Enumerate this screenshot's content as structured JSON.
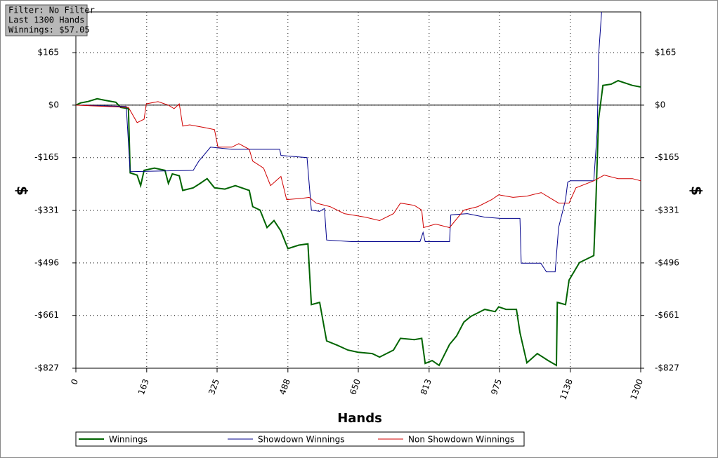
{
  "info": {
    "filter": "Filter: No Filter",
    "hands": "Last 1300 Hands",
    "winnings": "Winnings: $57.05"
  },
  "chart_data": {
    "type": "line",
    "xlabel": "Hands",
    "ylabel": "$",
    "y2label": "$",
    "grid": true,
    "xlim": [
      0,
      1300
    ],
    "ylim": [
      -827,
      293
    ],
    "xticks": [
      0,
      163,
      325,
      488,
      650,
      813,
      975,
      1138,
      1300
    ],
    "yticks": [
      {
        "value": 165,
        "label": "$165"
      },
      {
        "value": 0,
        "label": "$0"
      },
      {
        "value": -165,
        "label": "-$165"
      },
      {
        "value": -331,
        "label": "-$331"
      },
      {
        "value": -496,
        "label": "-$496"
      },
      {
        "value": -661,
        "label": "-$661"
      },
      {
        "value": -827,
        "label": "-$827"
      }
    ],
    "series": [
      {
        "name": "Winnings",
        "color": "#006400",
        "x": [
          0,
          11,
          27,
          49,
          68,
          92,
          103,
          121,
          125,
          141,
          149,
          157,
          181,
          205,
          213,
          222,
          238,
          246,
          270,
          286,
          302,
          319,
          343,
          367,
          399,
          407,
          424,
          440,
          456,
          472,
          488,
          513,
          534,
          542,
          561,
          577,
          602,
          626,
          650,
          682,
          699,
          731,
          747,
          779,
          796,
          804,
          820,
          836,
          860,
          876,
          893,
          909,
          925,
          941,
          965,
          973,
          990,
          1014,
          1022,
          1038,
          1062,
          1087,
          1106,
          1108,
          1127,
          1135,
          1159,
          1192,
          1197,
          1203,
          1213,
          1232,
          1248,
          1281,
          1300
        ],
        "values": [
          0,
          7,
          11,
          20,
          15,
          9,
          -7,
          -11,
          -213,
          -220,
          -253,
          -205,
          -198,
          -205,
          -246,
          -216,
          -222,
          -268,
          -260,
          -246,
          -231,
          -260,
          -264,
          -253,
          -268,
          -319,
          -330,
          -385,
          -363,
          -396,
          -451,
          -440,
          -436,
          -627,
          -620,
          -741,
          -755,
          -770,
          -777,
          -781,
          -792,
          -770,
          -733,
          -737,
          -733,
          -812,
          -803,
          -818,
          -752,
          -726,
          -682,
          -664,
          -653,
          -642,
          -649,
          -634,
          -642,
          -642,
          -715,
          -810,
          -781,
          -803,
          -818,
          -620,
          -627,
          -550,
          -495,
          -473,
          -297,
          -44,
          62,
          66,
          77,
          62,
          57
        ]
      },
      {
        "name": "Showdown Winnings",
        "color": "#00008b",
        "x": [
          0,
          116,
          125,
          270,
          283,
          310,
          359,
          469,
          472,
          532,
          542,
          561,
          572,
          577,
          634,
          792,
          799,
          804,
          860,
          863,
          901,
          941,
          977,
          1022,
          1025,
          1070,
          1083,
          1103,
          1111,
          1127,
          1132,
          1138,
          1192,
          1200,
          1203,
          1210
        ],
        "values": [
          0,
          -4,
          -209,
          -205,
          -176,
          -132,
          -139,
          -139,
          -158,
          -165,
          -330,
          -334,
          -325,
          -424,
          -429,
          -429,
          -400,
          -429,
          -429,
          -345,
          -341,
          -352,
          -356,
          -356,
          -497,
          -497,
          -524,
          -524,
          -385,
          -297,
          -242,
          -238,
          -238,
          -77,
          154,
          293
        ]
      },
      {
        "name": "Non Showdown Winnings",
        "color": "#d00000",
        "x": [
          0,
          121,
          141,
          157,
          162,
          189,
          213,
          226,
          238,
          246,
          262,
          294,
          319,
          327,
          359,
          375,
          399,
          407,
          432,
          448,
          472,
          485,
          521,
          537,
          553,
          585,
          618,
          666,
          699,
          731,
          747,
          779,
          796,
          800,
          828,
          860,
          893,
          925,
          957,
          973,
          1006,
          1038,
          1071,
          1111,
          1135,
          1151,
          1192,
          1216,
          1248,
          1281,
          1300
        ],
        "values": [
          0,
          -7,
          -55,
          -44,
          4,
          11,
          0,
          -11,
          4,
          -66,
          -62,
          -70,
          -77,
          -132,
          -132,
          -121,
          -139,
          -176,
          -198,
          -253,
          -224,
          -297,
          -293,
          -290,
          -308,
          -319,
          -341,
          -352,
          -363,
          -341,
          -308,
          -315,
          -330,
          -385,
          -374,
          -385,
          -330,
          -319,
          -297,
          -282,
          -290,
          -286,
          -275,
          -308,
          -308,
          -260,
          -238,
          -220,
          -231,
          -231,
          -238
        ]
      }
    ]
  }
}
